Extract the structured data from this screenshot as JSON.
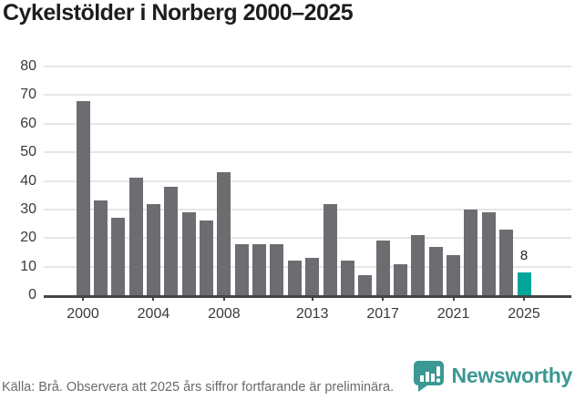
{
  "title": "Cykelstölder i Norberg 2000–2025",
  "chart_data": {
    "type": "bar",
    "categories": [
      "2000",
      "2001",
      "2002",
      "2003",
      "2004",
      "2005",
      "2006",
      "2007",
      "2008",
      "2009",
      "2010",
      "2011",
      "2012",
      "2013",
      "2014",
      "2015",
      "2016",
      "2017",
      "2018",
      "2019",
      "2020",
      "2021",
      "2022",
      "2023",
      "2024",
      "2025"
    ],
    "values": [
      68,
      33,
      27,
      41,
      32,
      38,
      29,
      26,
      43,
      18,
      18,
      18,
      12,
      13,
      32,
      12,
      7,
      19,
      11,
      21,
      17,
      14,
      30,
      29,
      23,
      8
    ],
    "title": "Cykelstölder i Norberg 2000–2025",
    "xlabel": "",
    "ylabel": "",
    "ylim": [
      0,
      80
    ],
    "ytick_step": 10,
    "ytick_labels": [
      "0",
      "10",
      "20",
      "30",
      "40",
      "50",
      "60",
      "70",
      "80"
    ],
    "xticks": [
      {
        "index": 0,
        "label": "2000"
      },
      {
        "index": 4,
        "label": "2004"
      },
      {
        "index": 8,
        "label": "2008"
      },
      {
        "index": 13,
        "label": "2013"
      },
      {
        "index": 17,
        "label": "2017"
      },
      {
        "index": 21,
        "label": "2021"
      },
      {
        "index": 25,
        "label": "2025"
      }
    ],
    "grid": true,
    "legend": "none",
    "bar_color": "#6d6c71",
    "highlight_index": 25,
    "highlight_color": "#00a69b",
    "highlight_value_label": "8"
  },
  "footer": {
    "source_note": "Källa: Brå. Observera att 2025 års siffror fortfarande är preliminära."
  },
  "branding": {
    "logo_text": "Newsworthy",
    "logo_color": "#3b9893",
    "logo_icon": "newsworthy-chart-bubble-icon"
  }
}
